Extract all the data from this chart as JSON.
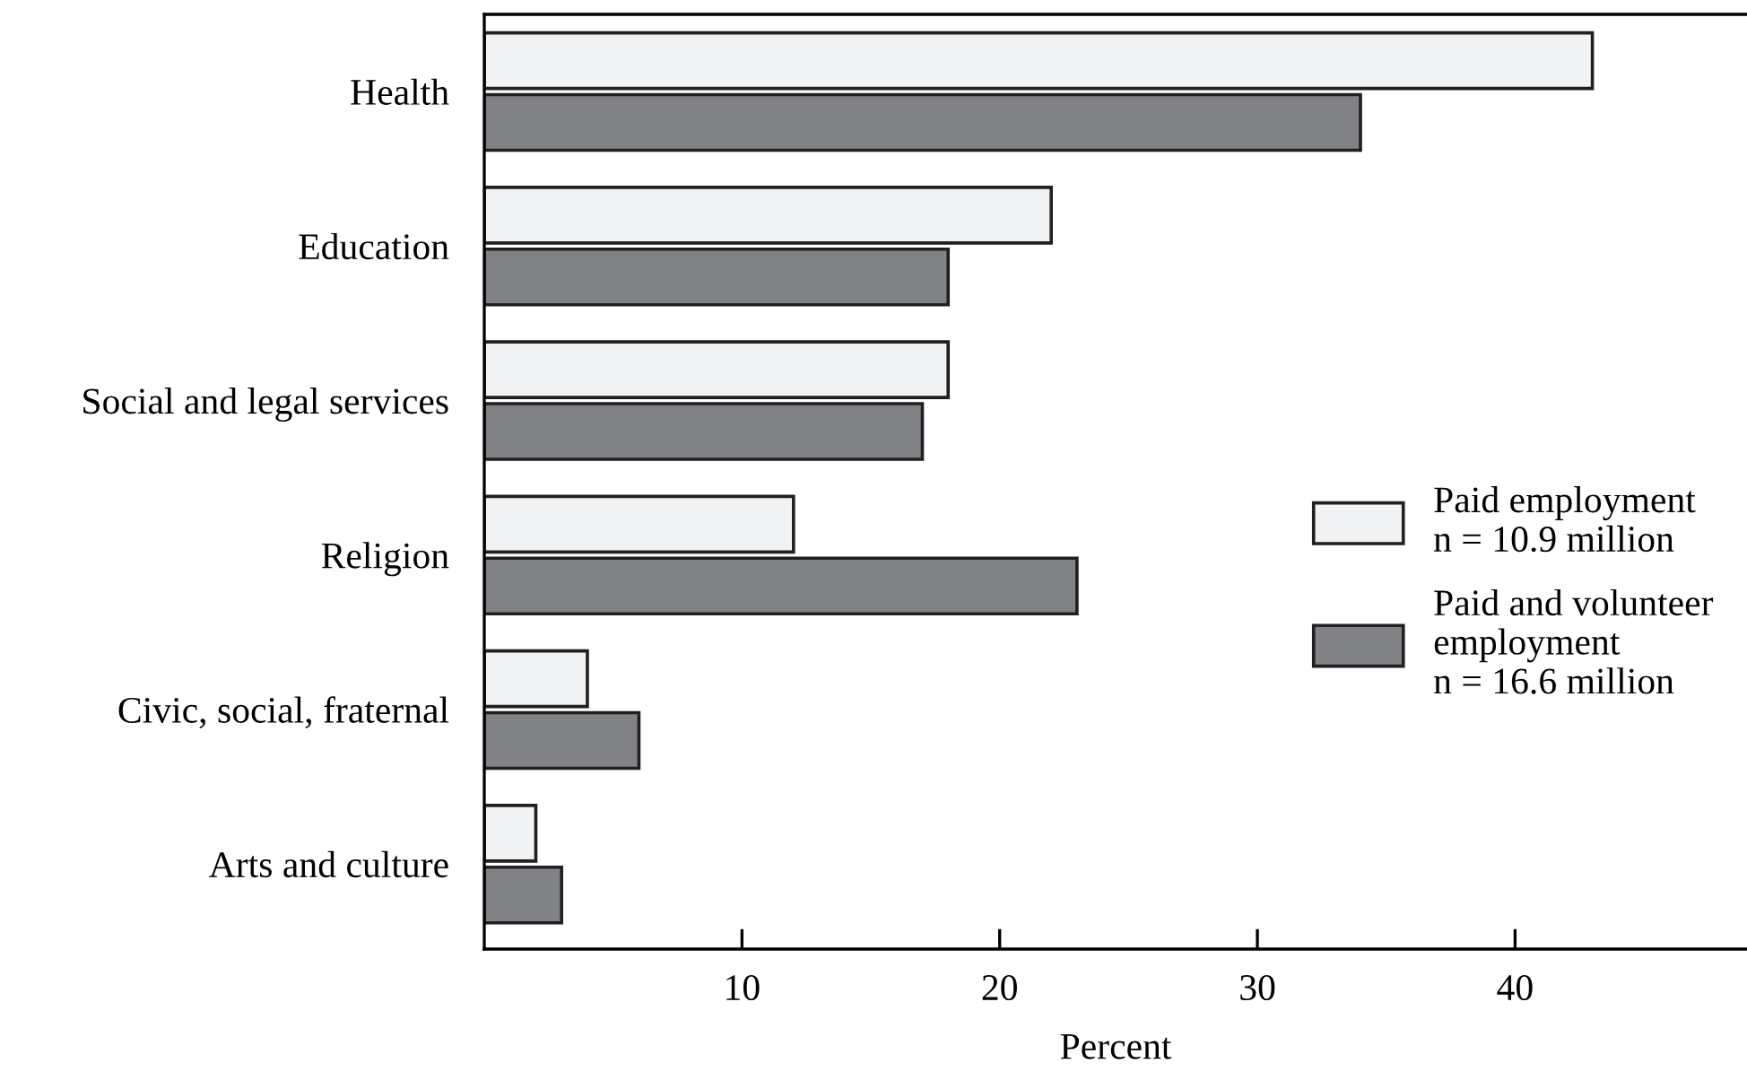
{
  "chart_data": {
    "type": "bar",
    "orientation": "horizontal",
    "xlabel": "Percent",
    "categories": [
      "Health",
      "Education",
      "Social and legal services",
      "Religion",
      "Civic, social, fraternal",
      "Arts and culture"
    ],
    "series": [
      {
        "name": "Paid employment\nn = 10.9 million",
        "color": "#f1f2f4",
        "values": [
          43,
          22,
          18,
          12,
          4,
          2
        ]
      },
      {
        "name": "Paid and volunteer\nemployment\nn = 16.6 million",
        "color": "#808285",
        "values": [
          34,
          18,
          17,
          23,
          6,
          3
        ]
      }
    ],
    "xlim": [
      0,
      49
    ],
    "xticks": [
      10,
      20,
      30,
      40
    ],
    "grid": false,
    "legend": "right"
  }
}
